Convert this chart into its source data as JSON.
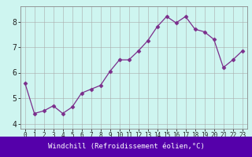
{
  "x": [
    0,
    1,
    2,
    3,
    4,
    5,
    6,
    7,
    8,
    9,
    10,
    11,
    12,
    13,
    14,
    15,
    16,
    17,
    18,
    19,
    20,
    21,
    22,
    23
  ],
  "y": [
    5.6,
    4.4,
    4.5,
    4.7,
    4.4,
    4.65,
    5.2,
    5.35,
    5.5,
    6.05,
    6.5,
    6.5,
    6.85,
    7.25,
    7.8,
    8.2,
    7.95,
    8.2,
    7.7,
    7.6,
    7.3,
    6.2,
    6.5,
    6.85
  ],
  "line_color": "#7B2D8B",
  "marker": "D",
  "marker_size": 2.5,
  "bg_color": "#cef5f0",
  "grid_color": "#aaaaaa",
  "xlabel": "Windchill (Refroidissement éolien,°C)",
  "xlabel_color": "#ffffff",
  "xlabel_bg": "#5500aa",
  "ylim": [
    3.8,
    8.6
  ],
  "xlim": [
    -0.5,
    23.5
  ],
  "yticks": [
    4,
    5,
    6,
    7,
    8
  ],
  "xticks": [
    0,
    1,
    2,
    3,
    4,
    5,
    6,
    7,
    8,
    9,
    10,
    11,
    12,
    13,
    14,
    15,
    16,
    17,
    18,
    19,
    20,
    21,
    22,
    23
  ],
  "tick_fontsize": 5.5,
  "ytick_fontsize": 7
}
